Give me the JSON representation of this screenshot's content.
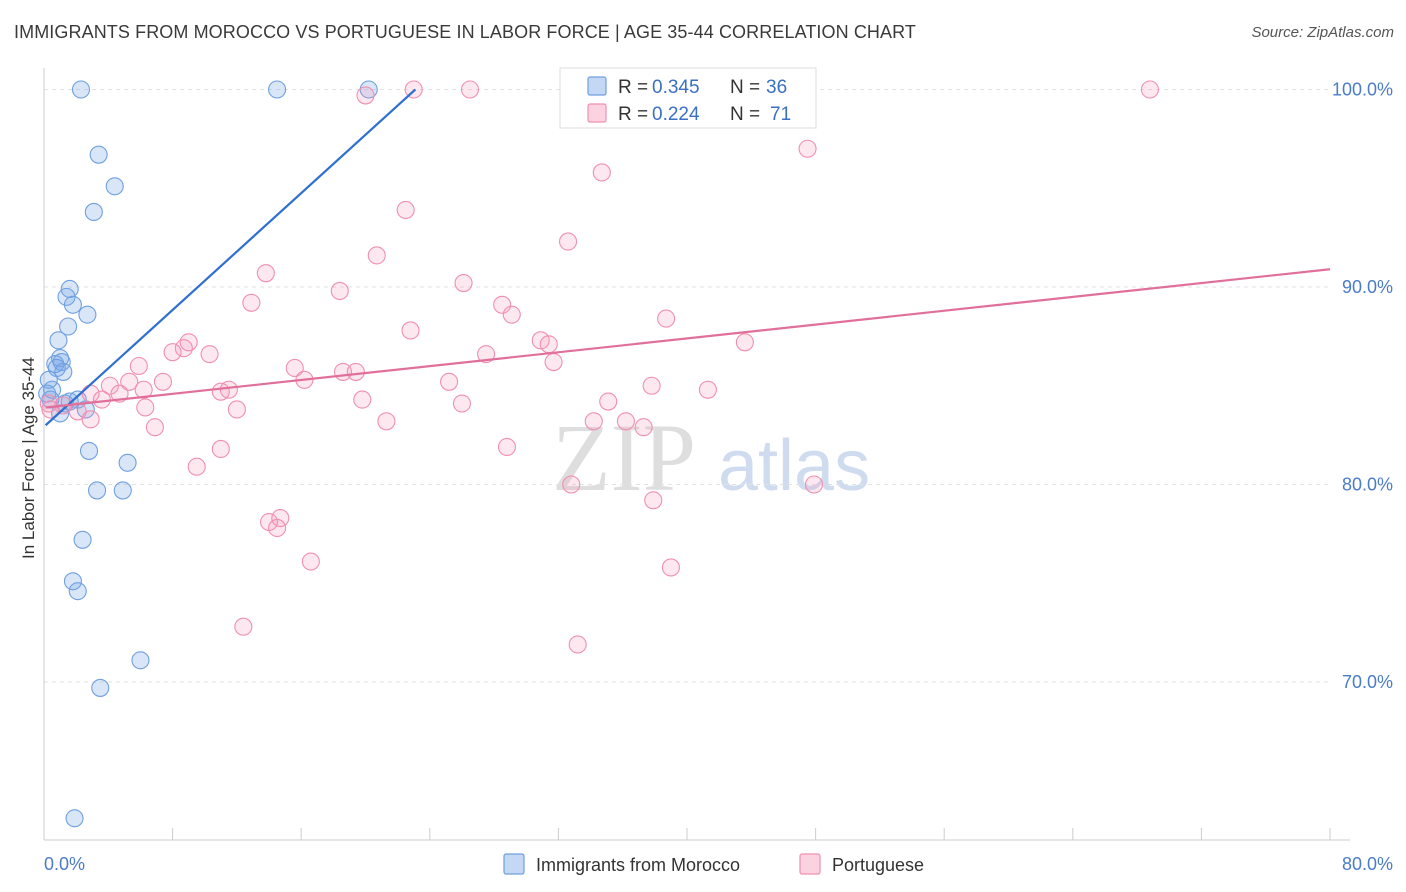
{
  "chart_data": {
    "type": "scatter",
    "title": "IMMIGRANTS FROM MOROCCO VS PORTUGUESE IN LABOR FORCE | AGE 35-44 CORRELATION CHART",
    "source": "Source: ZipAtlas.com",
    "xlabel": "",
    "ylabel": "In Labor Force | Age 35-44",
    "xlim": [
      0,
      80
    ],
    "ylim": [
      62,
      102
    ],
    "x_tick_labels": [
      "0.0%",
      "80.0%"
    ],
    "y_ticks": [
      70,
      80,
      90,
      100
    ],
    "y_tick_labels": [
      "70.0%",
      "80.0%",
      "90.0%",
      "100.0%"
    ],
    "grid": true,
    "legend": [
      {
        "name": "Immigrants from Morocco",
        "color": "#6fa0e0"
      },
      {
        "name": "Portuguese",
        "color": "#f08fb0"
      }
    ],
    "stats": [
      {
        "series": "Immigrants from Morocco",
        "r_label": "R =",
        "r": "0.345",
        "n_label": "N =",
        "n": "36"
      },
      {
        "series": "Portuguese",
        "r_label": "R =",
        "r": "0.224",
        "n_label": "N =",
        "n": "71"
      }
    ],
    "series": [
      {
        "name": "Immigrants from Morocco",
        "color": "#6fa0e0",
        "trend": {
          "x": [
            0.1,
            23.1
          ],
          "y": [
            83.0,
            100.0
          ],
          "color": "#2e6fd0"
        },
        "points": [
          [
            2.3,
            100.0
          ],
          [
            14.5,
            100.0
          ],
          [
            20.2,
            100.0
          ],
          [
            3.4,
            96.7
          ],
          [
            4.4,
            95.1
          ],
          [
            3.1,
            93.8
          ],
          [
            1.6,
            89.9
          ],
          [
            1.4,
            89.5
          ],
          [
            1.8,
            89.1
          ],
          [
            2.7,
            88.6
          ],
          [
            1.5,
            88.0
          ],
          [
            0.9,
            87.3
          ],
          [
            1.0,
            86.4
          ],
          [
            0.7,
            86.1
          ],
          [
            1.1,
            86.2
          ],
          [
            0.8,
            85.9
          ],
          [
            1.2,
            85.7
          ],
          [
            0.3,
            85.3
          ],
          [
            0.2,
            84.6
          ],
          [
            0.4,
            84.3
          ],
          [
            1.3,
            84.1
          ],
          [
            2.1,
            84.3
          ],
          [
            2.6,
            83.8
          ],
          [
            1.0,
            83.6
          ],
          [
            2.8,
            81.7
          ],
          [
            5.2,
            81.1
          ],
          [
            3.3,
            79.7
          ],
          [
            4.9,
            79.7
          ],
          [
            2.4,
            77.2
          ],
          [
            1.8,
            75.1
          ],
          [
            2.1,
            74.6
          ],
          [
            6.0,
            71.1
          ],
          [
            3.5,
            69.7
          ],
          [
            1.9,
            63.1
          ],
          [
            0.5,
            84.8
          ],
          [
            1.6,
            84.2
          ]
        ]
      },
      {
        "name": "Portuguese",
        "color": "#f08fb0",
        "trend": {
          "x": [
            0.1,
            80.0
          ],
          "y": [
            83.9,
            90.9
          ],
          "color": "#e0709a"
        },
        "points": [
          [
            23.0,
            100.0
          ],
          [
            26.5,
            100.0
          ],
          [
            68.8,
            100.0
          ],
          [
            20.0,
            99.7
          ],
          [
            47.5,
            97.0
          ],
          [
            34.7,
            95.8
          ],
          [
            22.5,
            93.9
          ],
          [
            32.6,
            92.3
          ],
          [
            20.7,
            91.6
          ],
          [
            13.8,
            90.7
          ],
          [
            26.1,
            90.2
          ],
          [
            18.4,
            89.8
          ],
          [
            12.9,
            89.2
          ],
          [
            28.5,
            89.1
          ],
          [
            29.1,
            88.6
          ],
          [
            38.7,
            88.4
          ],
          [
            22.8,
            87.8
          ],
          [
            9.0,
            87.2
          ],
          [
            30.9,
            87.3
          ],
          [
            31.4,
            87.1
          ],
          [
            43.6,
            87.2
          ],
          [
            8.7,
            86.9
          ],
          [
            8.0,
            86.7
          ],
          [
            10.3,
            86.6
          ],
          [
            27.5,
            86.6
          ],
          [
            31.7,
            86.2
          ],
          [
            5.9,
            86.0
          ],
          [
            15.6,
            85.9
          ],
          [
            18.6,
            85.7
          ],
          [
            19.4,
            85.7
          ],
          [
            16.2,
            85.3
          ],
          [
            5.3,
            85.2
          ],
          [
            7.4,
            85.2
          ],
          [
            25.2,
            85.2
          ],
          [
            37.8,
            85.0
          ],
          [
            4.1,
            85.0
          ],
          [
            2.9,
            84.6
          ],
          [
            11.0,
            84.7
          ],
          [
            11.5,
            84.8
          ],
          [
            4.7,
            84.6
          ],
          [
            6.2,
            84.8
          ],
          [
            41.3,
            84.8
          ],
          [
            3.6,
            84.3
          ],
          [
            19.8,
            84.3
          ],
          [
            35.1,
            84.2
          ],
          [
            26.0,
            84.1
          ],
          [
            12.0,
            83.8
          ],
          [
            6.3,
            83.9
          ],
          [
            1.2,
            84.0
          ],
          [
            0.3,
            84.1
          ],
          [
            2.1,
            83.7
          ],
          [
            2.9,
            83.3
          ],
          [
            21.3,
            83.2
          ],
          [
            34.2,
            83.2
          ],
          [
            36.2,
            83.2
          ],
          [
            37.3,
            82.9
          ],
          [
            6.9,
            82.9
          ],
          [
            11.0,
            81.8
          ],
          [
            28.8,
            81.9
          ],
          [
            9.5,
            80.9
          ],
          [
            32.8,
            80.0
          ],
          [
            47.9,
            80.0
          ],
          [
            37.9,
            79.2
          ],
          [
            14.0,
            78.1
          ],
          [
            14.7,
            78.3
          ],
          [
            14.5,
            77.8
          ],
          [
            16.6,
            76.1
          ],
          [
            39.0,
            75.8
          ],
          [
            12.4,
            72.8
          ],
          [
            33.2,
            71.9
          ],
          [
            0.4,
            83.8
          ]
        ]
      }
    ]
  }
}
